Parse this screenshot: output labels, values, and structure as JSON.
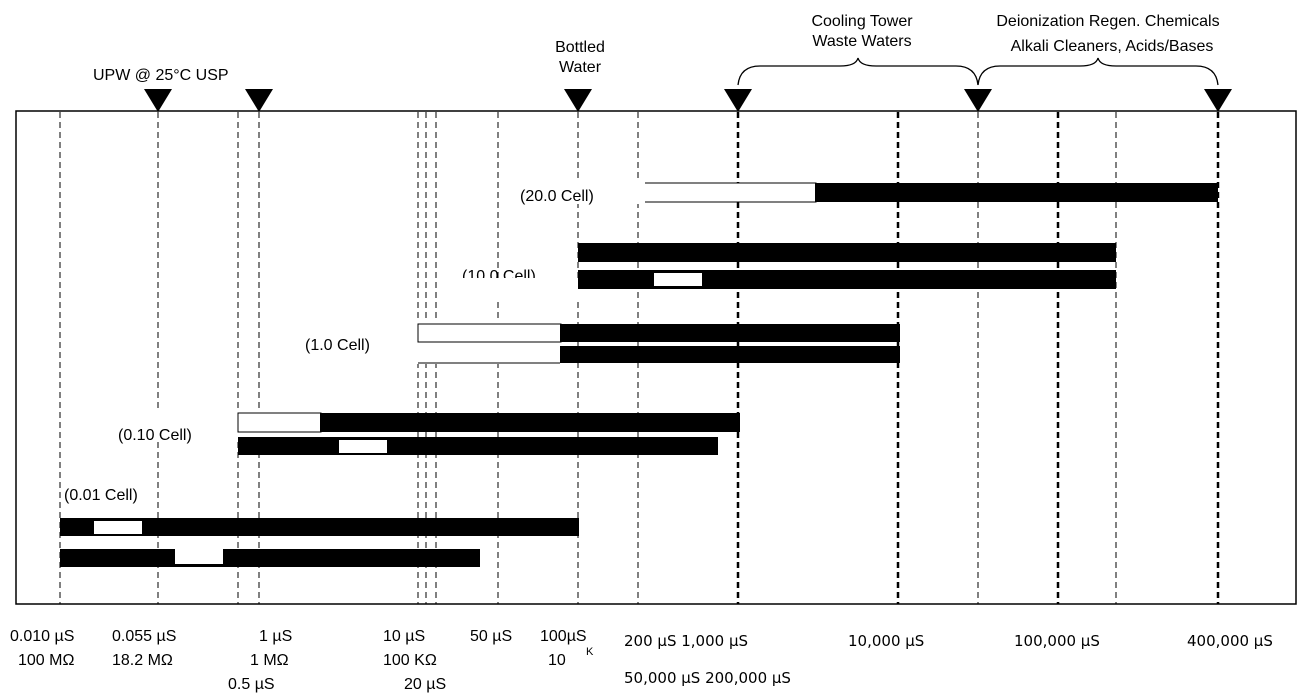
{
  "markers": {
    "upw": "UPW @ 25°C USP",
    "bottled": [
      "Bottled",
      "Water"
    ],
    "cooling": [
      "Cooling Tower",
      "Waste Waters"
    ],
    "deion": [
      "Deionization Regen. Chemicals",
      "Alkali Cleaners, Acids/Bases"
    ]
  },
  "cells": {
    "c20": "(20.0 Cell)",
    "c10": "(10.0 Cell)",
    "c1": "(1.0 Cell)",
    "c010": "(0.10 Cell)",
    "c001": "(0.01 Cell)"
  },
  "axis": {
    "t1a": "0.010 µS",
    "t1b": "100 MΩ",
    "t2a": "0.055 µS",
    "t2b": "18.2 MΩ",
    "t3a": "1 µS",
    "t3b": "1 MΩ",
    "t3c": "0.5 µS",
    "t4a": "10 µS",
    "t4b": "100 KΩ",
    "t4c": "20 µS",
    "t5": "50 µS",
    "t6a": "100µS",
    "t6b": "10",
    "t6sup": "K",
    "t7": "200 µS 1,000 µS",
    "t8": "10,000 µS",
    "t9": "100,000 µS",
    "t10": "400,000 µS",
    "t11": "50,000 µS 200,000 µS"
  }
}
